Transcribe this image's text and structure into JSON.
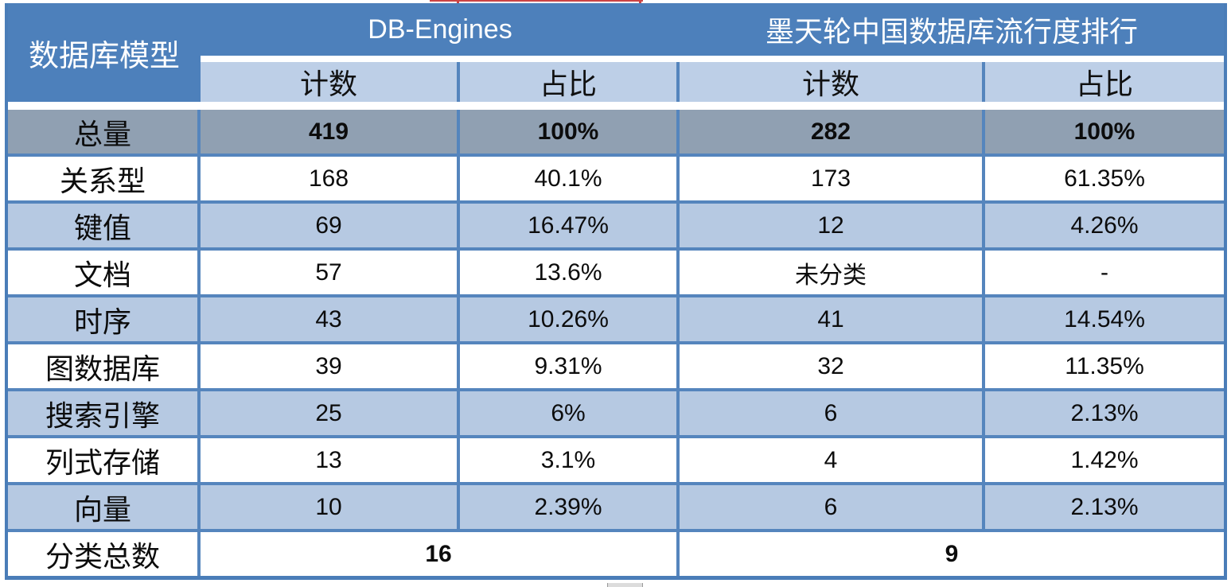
{
  "table": {
    "col1_header": "数据库模型",
    "groups": [
      {
        "title": "DB-Engines",
        "col_headers": [
          "计数",
          "占比"
        ]
      },
      {
        "title": "墨天轮中国数据库流行度排行",
        "col_headers": [
          "计数",
          "占比"
        ]
      }
    ],
    "rows": [
      {
        "label": "总量",
        "de_count": "419",
        "de_pct": "100%",
        "mt_count": "282",
        "mt_pct": "100%"
      },
      {
        "label": "关系型",
        "de_count": "168",
        "de_pct": "40.1%",
        "mt_count": "173",
        "mt_pct": "61.35%"
      },
      {
        "label": "键值",
        "de_count": "69",
        "de_pct": "16.47%",
        "mt_count": "12",
        "mt_pct": "4.26%"
      },
      {
        "label": "文档",
        "de_count": "57",
        "de_pct": "13.6%",
        "mt_count": "未分类",
        "mt_pct": "-"
      },
      {
        "label": "时序",
        "de_count": "43",
        "de_pct": "10.26%",
        "mt_count": "41",
        "mt_pct": "14.54%"
      },
      {
        "label": "图数据库",
        "de_count": "39",
        "de_pct": "9.31%",
        "mt_count": "32",
        "mt_pct": "11.35%"
      },
      {
        "label": "搜索引擎",
        "de_count": "25",
        "de_pct": "6%",
        "mt_count": "6",
        "mt_pct": "2.13%"
      },
      {
        "label": "列式存储",
        "de_count": "13",
        "de_pct": "3.1%",
        "mt_count": "4",
        "mt_pct": "1.42%"
      },
      {
        "label": "向量",
        "de_count": "10",
        "de_pct": "2.39%",
        "mt_count": "6",
        "mt_pct": "2.13%"
      }
    ],
    "footer": {
      "label": "分类总数",
      "de_total": "16",
      "mt_total": "9"
    }
  },
  "colors": {
    "header_blue": "#4d80bb",
    "subheader_blue": "#bdcfe7",
    "row_alt_blue": "#b6c9e2",
    "total_row_gray": "#90a0b2",
    "grid_line": "#5585bd",
    "red_annotation": "#cc4444"
  },
  "chart_data": {
    "type": "table",
    "columns": [
      "数据库模型",
      "DB-Engines 计数",
      "DB-Engines 占比",
      "墨天轮中国数据库流行度排行 计数",
      "墨天轮中国数据库流行度排行 占比"
    ],
    "rows": [
      [
        "总量",
        "419",
        "100%",
        "282",
        "100%"
      ],
      [
        "关系型",
        "168",
        "40.1%",
        "173",
        "61.35%"
      ],
      [
        "键值",
        "69",
        "16.47%",
        "12",
        "4.26%"
      ],
      [
        "文档",
        "57",
        "13.6%",
        "未分类",
        "-"
      ],
      [
        "时序",
        "43",
        "10.26%",
        "41",
        "14.54%"
      ],
      [
        "图数据库",
        "39",
        "9.31%",
        "32",
        "11.35%"
      ],
      [
        "搜索引擎",
        "25",
        "6%",
        "6",
        "2.13%"
      ],
      [
        "列式存储",
        "13",
        "3.1%",
        "4",
        "1.42%"
      ],
      [
        "向量",
        "10",
        "2.39%",
        "6",
        "2.13%"
      ],
      [
        "分类总数",
        "16",
        "16",
        "9",
        "9"
      ]
    ]
  }
}
